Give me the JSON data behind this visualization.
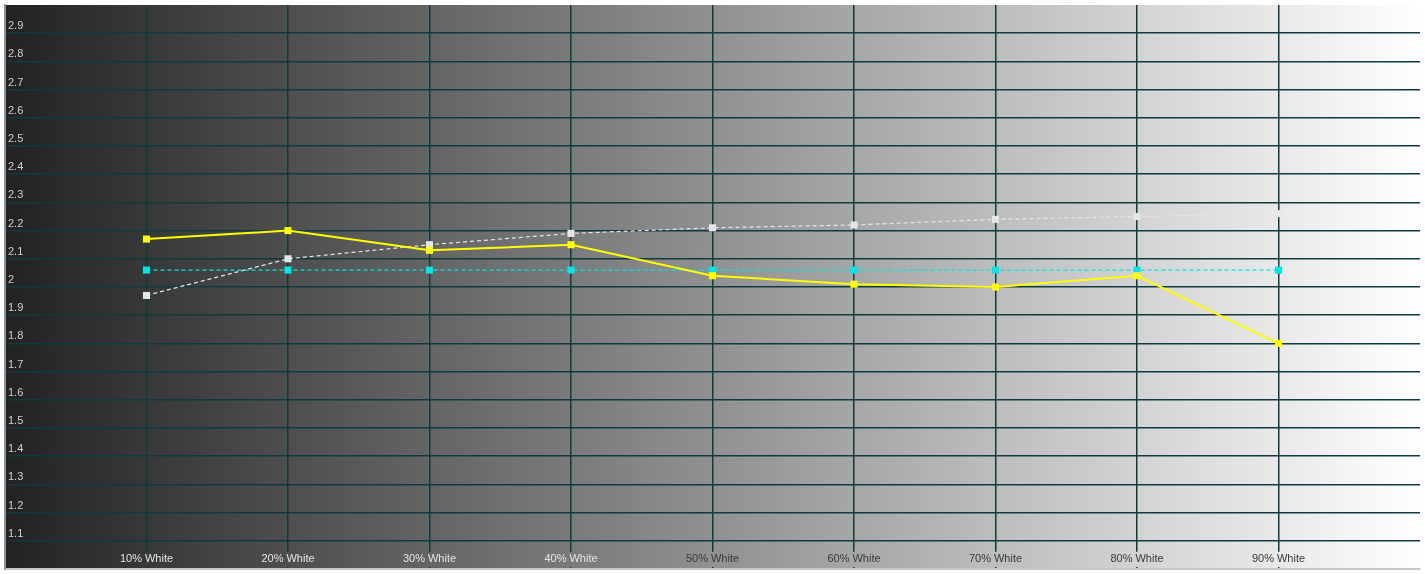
{
  "chart_data": {
    "type": "line",
    "x": [
      10,
      20,
      30,
      40,
      50,
      60,
      70,
      80,
      90
    ],
    "xlim": [
      0,
      100
    ],
    "xticks": [
      {
        "value": 10,
        "label": "10% White"
      },
      {
        "value": 20,
        "label": "20% White"
      },
      {
        "value": 30,
        "label": "30% White"
      },
      {
        "value": 40,
        "label": "40% White"
      },
      {
        "value": 50,
        "label": "50% White"
      },
      {
        "value": 60,
        "label": "60% White"
      },
      {
        "value": 70,
        "label": "70% White"
      },
      {
        "value": 80,
        "label": "80% White"
      },
      {
        "value": 90,
        "label": "90% White"
      }
    ],
    "ylim": [
      1,
      3
    ],
    "yticks": [
      1.1,
      1.2,
      1.3,
      1.4,
      1.5,
      1.6,
      1.7,
      1.8,
      1.9,
      2,
      2.1,
      2.2,
      2.3,
      2.4,
      2.5,
      2.6,
      2.7,
      2.8,
      2.9
    ],
    "grid": true,
    "marker": "square",
    "series": [
      {
        "color": "#ffff00",
        "line_style": "solid",
        "values": [
          2.17,
          2.2,
          2.13,
          2.15,
          2.04,
          2.01,
          2.0,
          2.04,
          1.8
        ]
      },
      {
        "color": "#00e5e5",
        "line_style": "dashed",
        "values": [
          2.06,
          2.06,
          2.06,
          2.06,
          2.06,
          2.06,
          2.06,
          2.06,
          2.06
        ]
      },
      {
        "color": "#e6e6e6",
        "line_style": "dashed",
        "values": [
          1.97,
          2.1,
          2.15,
          2.19,
          2.21,
          2.22,
          2.24,
          2.25,
          2.26
        ]
      }
    ]
  }
}
